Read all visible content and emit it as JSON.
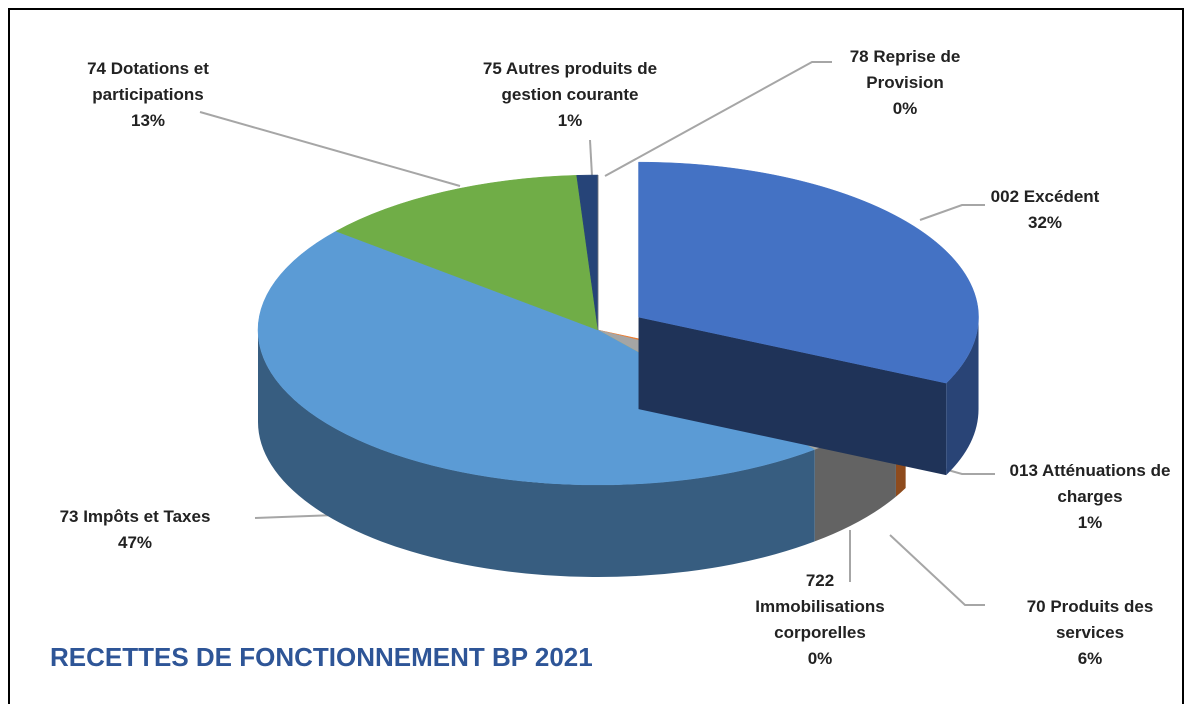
{
  "chart_data": {
    "type": "pie",
    "title": "RECETTES DE FONCTIONNEMENT BP 2021",
    "categories": [
      "002 Excédent",
      "013 Atténuations de charges",
      "70 Produits des services",
      "722 Immobilisations corporelles",
      "73 Impôts et Taxes",
      "74 Dotations et participations",
      "75 Autres produits de gestion courante",
      "78 Reprise de Provision"
    ],
    "values": [
      32,
      1,
      6,
      0,
      47,
      13,
      1,
      0
    ],
    "value_labels": [
      "32%",
      "1%",
      "6%",
      "0%",
      "47%",
      "13%",
      "1%",
      "0%"
    ],
    "colors": [
      "#4472c4",
      "#ed7d31",
      "#a5a5a5",
      "#ffc000",
      "#5b9bd5",
      "#70ad47",
      "#264478",
      "#7f7f7f"
    ],
    "exploded": [
      0
    ]
  }
}
